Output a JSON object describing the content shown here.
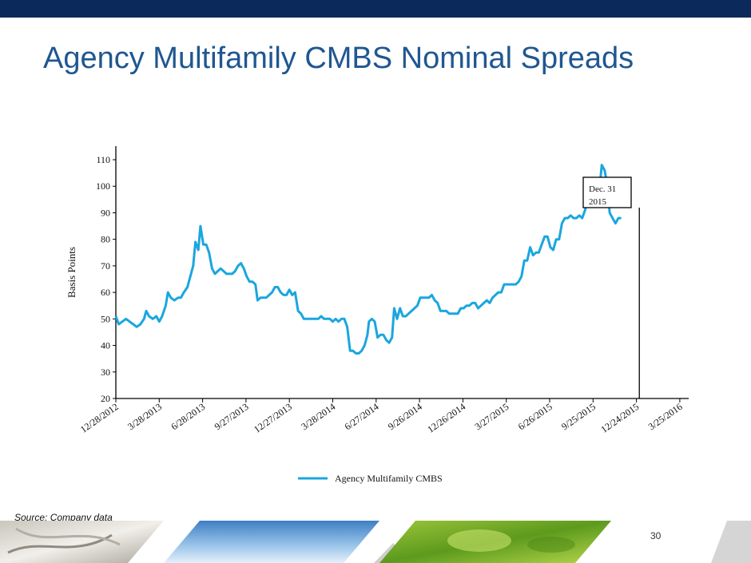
{
  "slide": {
    "title": "Agency Multifamily CMBS Nominal Spreads",
    "source": "Source: Company data",
    "page_number": "30",
    "accent_color": "#1f5791",
    "top_bar_color": "#0b2a5b"
  },
  "chart_data": {
    "type": "line",
    "ylabel": "Basis Points",
    "xlabel": "",
    "ylim": [
      20,
      110
    ],
    "yticks": [
      20,
      30,
      40,
      50,
      60,
      70,
      80,
      90,
      100,
      110
    ],
    "x_tick_labels": [
      "12/28/2012",
      "3/28/2013",
      "6/28/2013",
      "9/27/2013",
      "12/27/2013",
      "3/28/2014",
      "6/27/2014",
      "9/26/2014",
      "12/26/2014",
      "3/27/2015",
      "6/26/2015",
      "9/25/2015",
      "12/24/2015",
      "3/25/2016"
    ],
    "x_tick_months": [
      0,
      3,
      6,
      9,
      12,
      15,
      18,
      21,
      24,
      27,
      30,
      33,
      36,
      39
    ],
    "legend": "Agency Multifamily CMBS",
    "legend_position": "bottom",
    "grid": false,
    "line_color": "#1aa6df",
    "annotation": {
      "text_line1": "Dec. 31",
      "text_line2": "2015",
      "month": 36.2
    },
    "series": [
      {
        "name": "Agency Multifamily CMBS",
        "points": [
          [
            0.0,
            51
          ],
          [
            0.2,
            48
          ],
          [
            0.45,
            49
          ],
          [
            0.7,
            50
          ],
          [
            0.95,
            49
          ],
          [
            1.2,
            48
          ],
          [
            1.45,
            47
          ],
          [
            1.7,
            48
          ],
          [
            1.95,
            50
          ],
          [
            2.1,
            53
          ],
          [
            2.3,
            51
          ],
          [
            2.55,
            50
          ],
          [
            2.8,
            51
          ],
          [
            3.0,
            49
          ],
          [
            3.2,
            51
          ],
          [
            3.45,
            55
          ],
          [
            3.6,
            60
          ],
          [
            3.8,
            58
          ],
          [
            4.05,
            57
          ],
          [
            4.3,
            58
          ],
          [
            4.5,
            58
          ],
          [
            4.7,
            60
          ],
          [
            4.95,
            62
          ],
          [
            5.15,
            66
          ],
          [
            5.35,
            70
          ],
          [
            5.5,
            79
          ],
          [
            5.7,
            76
          ],
          [
            5.85,
            85
          ],
          [
            6.05,
            78
          ],
          [
            6.25,
            78
          ],
          [
            6.45,
            75
          ],
          [
            6.65,
            69
          ],
          [
            6.85,
            67
          ],
          [
            7.05,
            68
          ],
          [
            7.25,
            69
          ],
          [
            7.45,
            68
          ],
          [
            7.65,
            67
          ],
          [
            7.85,
            67
          ],
          [
            8.05,
            67
          ],
          [
            8.25,
            68
          ],
          [
            8.45,
            70
          ],
          [
            8.65,
            71
          ],
          [
            8.85,
            69
          ],
          [
            9.05,
            66
          ],
          [
            9.25,
            64
          ],
          [
            9.45,
            64
          ],
          [
            9.65,
            63
          ],
          [
            9.8,
            57
          ],
          [
            10.0,
            58
          ],
          [
            10.2,
            58
          ],
          [
            10.4,
            58
          ],
          [
            10.6,
            59
          ],
          [
            10.8,
            60
          ],
          [
            11.0,
            62
          ],
          [
            11.2,
            62
          ],
          [
            11.4,
            60
          ],
          [
            11.6,
            59
          ],
          [
            11.8,
            59
          ],
          [
            12.0,
            61
          ],
          [
            12.2,
            59
          ],
          [
            12.4,
            60
          ],
          [
            12.6,
            53
          ],
          [
            12.8,
            52
          ],
          [
            13.0,
            50
          ],
          [
            13.2,
            50
          ],
          [
            13.4,
            50
          ],
          [
            13.6,
            50
          ],
          [
            13.8,
            50
          ],
          [
            14.0,
            50
          ],
          [
            14.2,
            51
          ],
          [
            14.4,
            50
          ],
          [
            14.6,
            50
          ],
          [
            14.8,
            50
          ],
          [
            15.0,
            49
          ],
          [
            15.2,
            50
          ],
          [
            15.4,
            49
          ],
          [
            15.6,
            50
          ],
          [
            15.8,
            50
          ],
          [
            16.0,
            47
          ],
          [
            16.2,
            38
          ],
          [
            16.4,
            38
          ],
          [
            16.6,
            37
          ],
          [
            16.8,
            37
          ],
          [
            17.0,
            38
          ],
          [
            17.2,
            40
          ],
          [
            17.4,
            44
          ],
          [
            17.5,
            49
          ],
          [
            17.7,
            50
          ],
          [
            17.9,
            49
          ],
          [
            18.1,
            43
          ],
          [
            18.3,
            44
          ],
          [
            18.5,
            44
          ],
          [
            18.7,
            42
          ],
          [
            18.9,
            41
          ],
          [
            19.1,
            43
          ],
          [
            19.25,
            54
          ],
          [
            19.45,
            50
          ],
          [
            19.65,
            54
          ],
          [
            19.85,
            51
          ],
          [
            20.05,
            51
          ],
          [
            20.25,
            52
          ],
          [
            20.45,
            53
          ],
          [
            20.65,
            54
          ],
          [
            20.85,
            55
          ],
          [
            21.05,
            58
          ],
          [
            21.25,
            58
          ],
          [
            21.45,
            58
          ],
          [
            21.65,
            58
          ],
          [
            21.85,
            59
          ],
          [
            22.05,
            57
          ],
          [
            22.25,
            56
          ],
          [
            22.45,
            53
          ],
          [
            22.65,
            53
          ],
          [
            22.85,
            53
          ],
          [
            23.05,
            52
          ],
          [
            23.25,
            52
          ],
          [
            23.45,
            52
          ],
          [
            23.65,
            52
          ],
          [
            23.85,
            54
          ],
          [
            24.05,
            54
          ],
          [
            24.25,
            55
          ],
          [
            24.45,
            55
          ],
          [
            24.65,
            56
          ],
          [
            24.85,
            56
          ],
          [
            25.05,
            54
          ],
          [
            25.25,
            55
          ],
          [
            25.45,
            56
          ],
          [
            25.65,
            57
          ],
          [
            25.85,
            56
          ],
          [
            26.05,
            58
          ],
          [
            26.25,
            59
          ],
          [
            26.45,
            60
          ],
          [
            26.65,
            60
          ],
          [
            26.85,
            63
          ],
          [
            27.05,
            63
          ],
          [
            27.25,
            63
          ],
          [
            27.45,
            63
          ],
          [
            27.65,
            63
          ],
          [
            27.85,
            64
          ],
          [
            28.05,
            66
          ],
          [
            28.25,
            72
          ],
          [
            28.45,
            72
          ],
          [
            28.65,
            77
          ],
          [
            28.85,
            74
          ],
          [
            29.05,
            75
          ],
          [
            29.25,
            75
          ],
          [
            29.45,
            78
          ],
          [
            29.65,
            81
          ],
          [
            29.85,
            81
          ],
          [
            30.05,
            77
          ],
          [
            30.25,
            76
          ],
          [
            30.45,
            80
          ],
          [
            30.65,
            80
          ],
          [
            30.85,
            86
          ],
          [
            31.05,
            88
          ],
          [
            31.25,
            88
          ],
          [
            31.45,
            89
          ],
          [
            31.65,
            88
          ],
          [
            31.85,
            88
          ],
          [
            32.05,
            89
          ],
          [
            32.25,
            88
          ],
          [
            32.45,
            91
          ],
          [
            32.65,
            95
          ],
          [
            32.85,
            96
          ],
          [
            33.05,
            96
          ],
          [
            33.2,
            100
          ],
          [
            33.4,
            96
          ],
          [
            33.6,
            108
          ],
          [
            33.8,
            106
          ],
          [
            34.0,
            100
          ],
          [
            34.15,
            90
          ],
          [
            34.35,
            88
          ],
          [
            34.55,
            86
          ],
          [
            34.75,
            88
          ],
          [
            34.95,
            88
          ]
        ]
      }
    ]
  }
}
